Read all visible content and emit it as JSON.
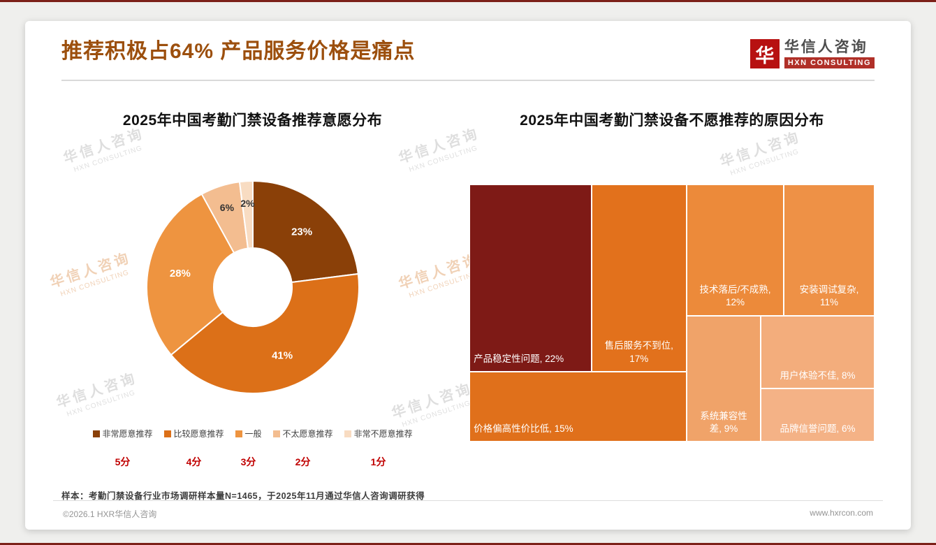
{
  "page": {
    "title": "推荐积极占64% 产品服务价格是痛点",
    "footnote": "样本：考勤门禁设备行业市场调研样本量N=1465，于2025年11月通过华信人咨询调研获得",
    "footer_left": "©2026.1 HXR华信人咨询",
    "footer_right": "www.hxrcon.com"
  },
  "logo": {
    "mark": "华",
    "name": "华信人咨询",
    "name_en": "HXN CONSULTING"
  },
  "watermark": {
    "line1": "华信人咨询",
    "line2": "HXN CONSULTING"
  },
  "chart_data": [
    {
      "type": "pie",
      "subtype": "donut",
      "title": "2025年中国考勤门禁设备推荐意愿分布",
      "categories": [
        "非常愿意推荐",
        "比较愿意推荐",
        "一般",
        "不太愿意推荐",
        "非常不愿意推荐"
      ],
      "values": [
        23,
        41,
        28,
        6,
        2
      ],
      "unit": "%",
      "scores": [
        "5分",
        "4分",
        "3分",
        "2分",
        "1分"
      ],
      "colors": [
        "#8a4008",
        "#dc7018",
        "#ee9440",
        "#f3bd90",
        "#f8dcc2"
      ],
      "legend_position": "bottom",
      "start_angle_deg": -90,
      "direction": "clockwise"
    },
    {
      "type": "treemap",
      "title": "2025年中国考勤门禁设备不愿推荐的原因分布",
      "unit": "%",
      "items": [
        {
          "name": "产品稳定性问题",
          "value": 22,
          "lines": [
            "产品稳定性问题, 22%"
          ],
          "color": "#7e1a16",
          "align": "left",
          "rect": {
            "x": 0,
            "y": 0,
            "w": 30.1,
            "h": 72.8
          }
        },
        {
          "name": "售后服务不到位",
          "value": 17,
          "lines": [
            "售后服务不到位,",
            "17%"
          ],
          "color": "#e2711c",
          "align": "center",
          "rect": {
            "x": 30.1,
            "y": 0,
            "w": 23.5,
            "h": 72.8
          }
        },
        {
          "name": "技术落后/不成熟",
          "value": 12,
          "lines": [
            "技术落后/不成熟,",
            "12%"
          ],
          "color": "#ec8a3a",
          "align": "center",
          "rect": {
            "x": 53.6,
            "y": 0,
            "w": 24.0,
            "h": 51.0
          }
        },
        {
          "name": "安装调试复杂",
          "value": 11,
          "lines": [
            "安装调试复杂,",
            "11%"
          ],
          "color": "#ee9146",
          "align": "center",
          "rect": {
            "x": 77.6,
            "y": 0,
            "w": 22.4,
            "h": 51.0
          }
        },
        {
          "name": "价格偏高性价比低",
          "value": 15,
          "lines": [
            "价格偏高性价比低, 15%"
          ],
          "color": "#e0701b",
          "align": "left",
          "rect": {
            "x": 0,
            "y": 72.8,
            "w": 53.6,
            "h": 27.2
          }
        },
        {
          "name": "系统兼容性差",
          "value": 9,
          "lines": [
            "系统兼容性",
            "差, 9%"
          ],
          "color": "#f0a369",
          "align": "center",
          "rect": {
            "x": 53.6,
            "y": 51.0,
            "w": 18.3,
            "h": 49.0
          }
        },
        {
          "name": "用户体验不佳",
          "value": 8,
          "lines": [
            "用户体验不佳, 8%"
          ],
          "color": "#f3ad7c",
          "align": "center",
          "rect": {
            "x": 71.9,
            "y": 51.0,
            "w": 28.1,
            "h": 28.3
          }
        },
        {
          "name": "品牌信誉问题",
          "value": 6,
          "lines": [
            "品牌信誉问题, 6%"
          ],
          "color": "#f4b286",
          "align": "center",
          "rect": {
            "x": 71.9,
            "y": 79.3,
            "w": 28.1,
            "h": 20.7
          }
        }
      ]
    }
  ]
}
